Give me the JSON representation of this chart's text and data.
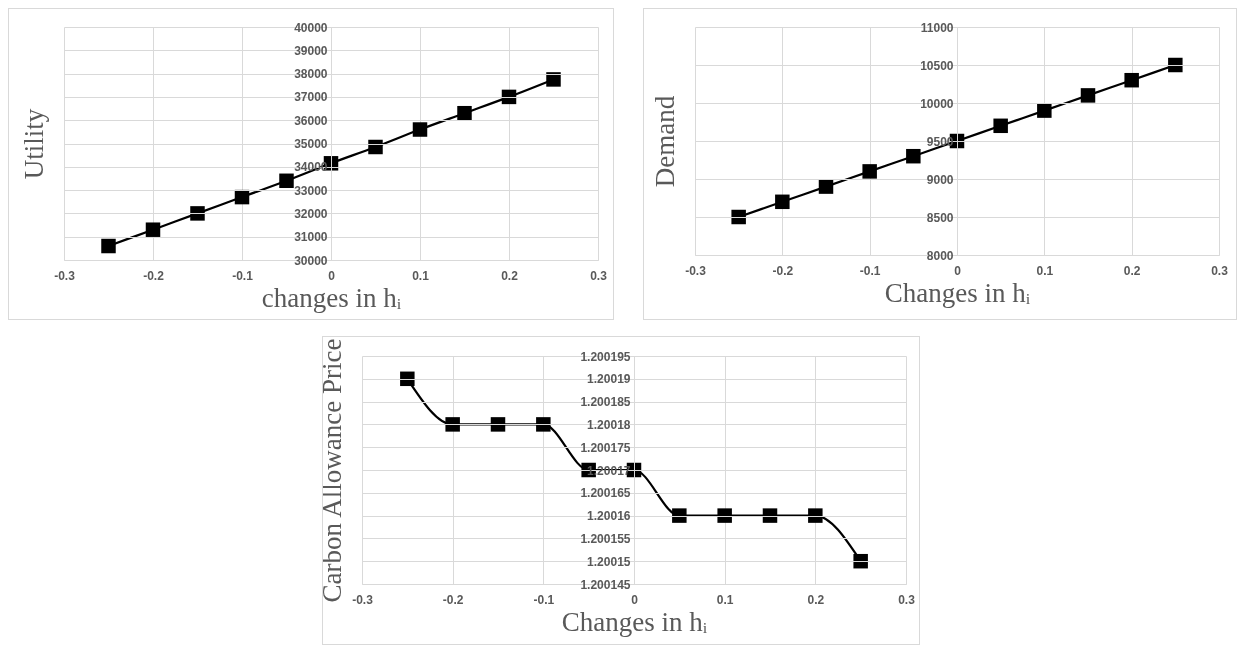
{
  "chart_data": [
    {
      "type": "line",
      "xlabel": "changes in hᵢ",
      "ylabel": "Utility",
      "x": [
        -0.25,
        -0.2,
        -0.15,
        -0.1,
        -0.05,
        0,
        0.05,
        0.1,
        0.15,
        0.2,
        0.25
      ],
      "series": [
        {
          "color": "#000000",
          "values": [
            30600,
            31300,
            32000,
            32700,
            33400,
            34150,
            34850,
            35600,
            36300,
            37000,
            37750
          ]
        }
      ],
      "xlim": [
        -0.3,
        0.3
      ],
      "xticks": [
        -0.3,
        -0.2,
        -0.1,
        0,
        0.1,
        0.2,
        0.3
      ],
      "ylim": [
        30000,
        40000
      ],
      "yticks": [
        30000,
        31000,
        32000,
        33000,
        34000,
        35000,
        36000,
        37000,
        38000,
        39000,
        40000
      ],
      "grid": true,
      "marker": "square",
      "line_style": "solid"
    },
    {
      "type": "line",
      "xlabel": "Changes in hᵢ",
      "ylabel": "Demand",
      "x": [
        -0.25,
        -0.2,
        -0.15,
        -0.1,
        -0.05,
        0,
        0.05,
        0.1,
        0.15,
        0.2,
        0.25
      ],
      "series": [
        {
          "color": "#000000",
          "values": [
            8500,
            8700,
            8900,
            9100,
            9300,
            9500,
            9700,
            9900,
            10100,
            10300,
            10500
          ]
        }
      ],
      "xlim": [
        -0.3,
        0.3
      ],
      "xticks": [
        -0.3,
        -0.2,
        -0.1,
        0,
        0.1,
        0.2,
        0.3
      ],
      "ylim": [
        8000,
        11000
      ],
      "yticks": [
        8000,
        8500,
        9000,
        9500,
        10000,
        10500,
        11000
      ],
      "grid": true,
      "marker": "square",
      "line_style": "solid"
    },
    {
      "type": "line",
      "xlabel": "Changes in hᵢ",
      "ylabel": "Carbon Allowance Price",
      "x": [
        -0.25,
        -0.2,
        -0.15,
        -0.1,
        -0.05,
        0,
        0.05,
        0.1,
        0.15,
        0.2,
        0.25
      ],
      "series": [
        {
          "color": "#000000",
          "values": [
            1.20019,
            1.20018,
            1.20018,
            1.20018,
            1.20017,
            1.20017,
            1.20016,
            1.20016,
            1.20016,
            1.20016,
            1.20015
          ]
        }
      ],
      "xlim": [
        -0.3,
        0.3
      ],
      "xticks": [
        -0.3,
        -0.2,
        -0.1,
        0,
        0.1,
        0.2,
        0.3
      ],
      "ylim": [
        1.200145,
        1.200195
      ],
      "yticks": [
        1.200145,
        1.20015,
        1.200155,
        1.20016,
        1.200165,
        1.20017,
        1.200175,
        1.20018,
        1.200185,
        1.20019,
        1.200195
      ],
      "grid": true,
      "marker": "square",
      "line_style": "solid"
    }
  ]
}
